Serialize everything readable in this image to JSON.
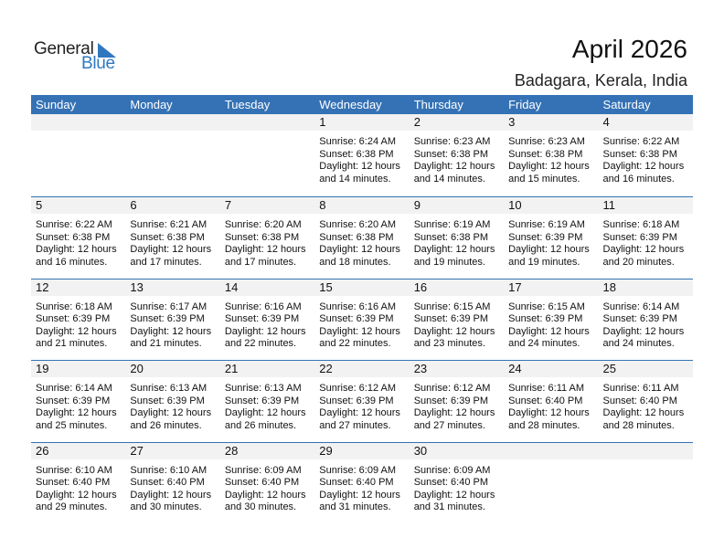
{
  "logo": {
    "word1": "General",
    "word2": "Blue",
    "accent": "#2f78c0"
  },
  "title": "April 2026",
  "location": "Badagara, Kerala, India",
  "colors": {
    "header": "#3572b5",
    "band": "#f2f2f2"
  },
  "weekdays": [
    "Sunday",
    "Monday",
    "Tuesday",
    "Wednesday",
    "Thursday",
    "Friday",
    "Saturday"
  ],
  "weeks": [
    [
      null,
      null,
      null,
      {
        "day": "1",
        "sunrise": "Sunrise: 6:24 AM",
        "sunset": "Sunset: 6:38 PM",
        "daylight": "Daylight: 12 hours",
        "minutes": "and 14 minutes."
      },
      {
        "day": "2",
        "sunrise": "Sunrise: 6:23 AM",
        "sunset": "Sunset: 6:38 PM",
        "daylight": "Daylight: 12 hours",
        "minutes": "and 14 minutes."
      },
      {
        "day": "3",
        "sunrise": "Sunrise: 6:23 AM",
        "sunset": "Sunset: 6:38 PM",
        "daylight": "Daylight: 12 hours",
        "minutes": "and 15 minutes."
      },
      {
        "day": "4",
        "sunrise": "Sunrise: 6:22 AM",
        "sunset": "Sunset: 6:38 PM",
        "daylight": "Daylight: 12 hours",
        "minutes": "and 16 minutes."
      }
    ],
    [
      {
        "day": "5",
        "sunrise": "Sunrise: 6:22 AM",
        "sunset": "Sunset: 6:38 PM",
        "daylight": "Daylight: 12 hours",
        "minutes": "and 16 minutes."
      },
      {
        "day": "6",
        "sunrise": "Sunrise: 6:21 AM",
        "sunset": "Sunset: 6:38 PM",
        "daylight": "Daylight: 12 hours",
        "minutes": "and 17 minutes."
      },
      {
        "day": "7",
        "sunrise": "Sunrise: 6:20 AM",
        "sunset": "Sunset: 6:38 PM",
        "daylight": "Daylight: 12 hours",
        "minutes": "and 17 minutes."
      },
      {
        "day": "8",
        "sunrise": "Sunrise: 6:20 AM",
        "sunset": "Sunset: 6:38 PM",
        "daylight": "Daylight: 12 hours",
        "minutes": "and 18 minutes."
      },
      {
        "day": "9",
        "sunrise": "Sunrise: 6:19 AM",
        "sunset": "Sunset: 6:38 PM",
        "daylight": "Daylight: 12 hours",
        "minutes": "and 19 minutes."
      },
      {
        "day": "10",
        "sunrise": "Sunrise: 6:19 AM",
        "sunset": "Sunset: 6:39 PM",
        "daylight": "Daylight: 12 hours",
        "minutes": "and 19 minutes."
      },
      {
        "day": "11",
        "sunrise": "Sunrise: 6:18 AM",
        "sunset": "Sunset: 6:39 PM",
        "daylight": "Daylight: 12 hours",
        "minutes": "and 20 minutes."
      }
    ],
    [
      {
        "day": "12",
        "sunrise": "Sunrise: 6:18 AM",
        "sunset": "Sunset: 6:39 PM",
        "daylight": "Daylight: 12 hours",
        "minutes": "and 21 minutes."
      },
      {
        "day": "13",
        "sunrise": "Sunrise: 6:17 AM",
        "sunset": "Sunset: 6:39 PM",
        "daylight": "Daylight: 12 hours",
        "minutes": "and 21 minutes."
      },
      {
        "day": "14",
        "sunrise": "Sunrise: 6:16 AM",
        "sunset": "Sunset: 6:39 PM",
        "daylight": "Daylight: 12 hours",
        "minutes": "and 22 minutes."
      },
      {
        "day": "15",
        "sunrise": "Sunrise: 6:16 AM",
        "sunset": "Sunset: 6:39 PM",
        "daylight": "Daylight: 12 hours",
        "minutes": "and 22 minutes."
      },
      {
        "day": "16",
        "sunrise": "Sunrise: 6:15 AM",
        "sunset": "Sunset: 6:39 PM",
        "daylight": "Daylight: 12 hours",
        "minutes": "and 23 minutes."
      },
      {
        "day": "17",
        "sunrise": "Sunrise: 6:15 AM",
        "sunset": "Sunset: 6:39 PM",
        "daylight": "Daylight: 12 hours",
        "minutes": "and 24 minutes."
      },
      {
        "day": "18",
        "sunrise": "Sunrise: 6:14 AM",
        "sunset": "Sunset: 6:39 PM",
        "daylight": "Daylight: 12 hours",
        "minutes": "and 24 minutes."
      }
    ],
    [
      {
        "day": "19",
        "sunrise": "Sunrise: 6:14 AM",
        "sunset": "Sunset: 6:39 PM",
        "daylight": "Daylight: 12 hours",
        "minutes": "and 25 minutes."
      },
      {
        "day": "20",
        "sunrise": "Sunrise: 6:13 AM",
        "sunset": "Sunset: 6:39 PM",
        "daylight": "Daylight: 12 hours",
        "minutes": "and 26 minutes."
      },
      {
        "day": "21",
        "sunrise": "Sunrise: 6:13 AM",
        "sunset": "Sunset: 6:39 PM",
        "daylight": "Daylight: 12 hours",
        "minutes": "and 26 minutes."
      },
      {
        "day": "22",
        "sunrise": "Sunrise: 6:12 AM",
        "sunset": "Sunset: 6:39 PM",
        "daylight": "Daylight: 12 hours",
        "minutes": "and 27 minutes."
      },
      {
        "day": "23",
        "sunrise": "Sunrise: 6:12 AM",
        "sunset": "Sunset: 6:39 PM",
        "daylight": "Daylight: 12 hours",
        "minutes": "and 27 minutes."
      },
      {
        "day": "24",
        "sunrise": "Sunrise: 6:11 AM",
        "sunset": "Sunset: 6:40 PM",
        "daylight": "Daylight: 12 hours",
        "minutes": "and 28 minutes."
      },
      {
        "day": "25",
        "sunrise": "Sunrise: 6:11 AM",
        "sunset": "Sunset: 6:40 PM",
        "daylight": "Daylight: 12 hours",
        "minutes": "and 28 minutes."
      }
    ],
    [
      {
        "day": "26",
        "sunrise": "Sunrise: 6:10 AM",
        "sunset": "Sunset: 6:40 PM",
        "daylight": "Daylight: 12 hours",
        "minutes": "and 29 minutes."
      },
      {
        "day": "27",
        "sunrise": "Sunrise: 6:10 AM",
        "sunset": "Sunset: 6:40 PM",
        "daylight": "Daylight: 12 hours",
        "minutes": "and 30 minutes."
      },
      {
        "day": "28",
        "sunrise": "Sunrise: 6:09 AM",
        "sunset": "Sunset: 6:40 PM",
        "daylight": "Daylight: 12 hours",
        "minutes": "and 30 minutes."
      },
      {
        "day": "29",
        "sunrise": "Sunrise: 6:09 AM",
        "sunset": "Sunset: 6:40 PM",
        "daylight": "Daylight: 12 hours",
        "minutes": "and 31 minutes."
      },
      {
        "day": "30",
        "sunrise": "Sunrise: 6:09 AM",
        "sunset": "Sunset: 6:40 PM",
        "daylight": "Daylight: 12 hours",
        "minutes": "and 31 minutes."
      },
      null,
      null
    ]
  ]
}
